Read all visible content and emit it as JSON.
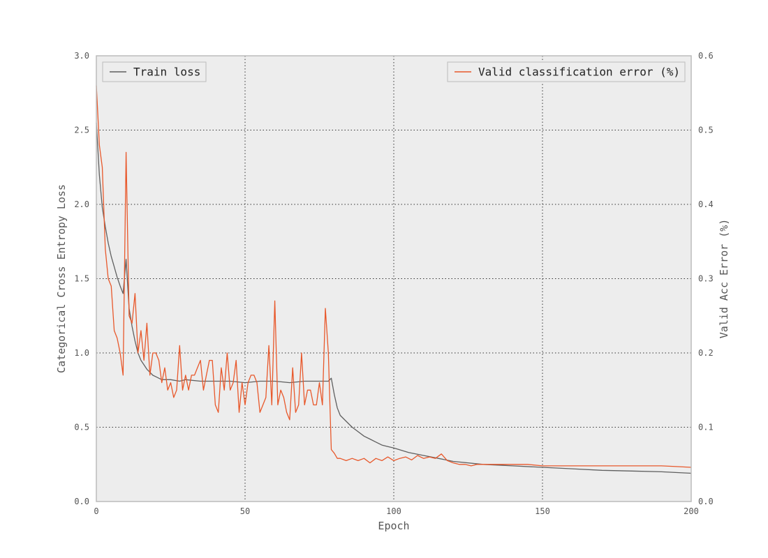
{
  "colors": {
    "plot_background": "#EDEDED",
    "train_loss": "#5F5F5F",
    "valid_error": "#E8582B",
    "grid": "#333333",
    "spine": "#BBBBBB"
  },
  "chart_data": {
    "type": "line",
    "grid": true,
    "x": {
      "label": "Epoch",
      "range": [
        0,
        200
      ],
      "ticks": [
        0,
        50,
        100,
        150,
        200
      ],
      "tick_labels": [
        "0",
        "50",
        "100",
        "150",
        "200"
      ]
    },
    "y_left": {
      "label": "Categorical Cross Entropy Loss",
      "range": [
        0,
        3.0
      ],
      "ticks": [
        0,
        0.5,
        1.0,
        1.5,
        2.0,
        2.5,
        3.0
      ],
      "tick_labels": [
        "0.0",
        "0.5",
        "1.0",
        "1.5",
        "2.0",
        "2.5",
        "3.0"
      ]
    },
    "y_right": {
      "label": "Valid Acc Error (%)",
      "range": [
        0,
        0.6
      ],
      "ticks": [
        0,
        0.1,
        0.2,
        0.3,
        0.4,
        0.5,
        0.6
      ],
      "tick_labels": [
        "0.0",
        "0.1",
        "0.2",
        "0.3",
        "0.4",
        "0.5",
        "0.6"
      ]
    },
    "legends": [
      {
        "placement": "top-left",
        "label": "Train loss",
        "series": "train_loss"
      },
      {
        "placement": "top-right",
        "label": "Valid classification error (%)",
        "series": "valid_error"
      }
    ],
    "series": [
      {
        "name": "Train loss",
        "axis": "left",
        "x": [
          0,
          1,
          2,
          3,
          4,
          5,
          6,
          7,
          8,
          9,
          10,
          11,
          12,
          13,
          14,
          15,
          16,
          17,
          18,
          19,
          20,
          22,
          25,
          28,
          30,
          35,
          40,
          45,
          50,
          55,
          60,
          65,
          70,
          75,
          78,
          79,
          80,
          81,
          82,
          84,
          86,
          88,
          90,
          92,
          94,
          96,
          98,
          100,
          105,
          110,
          115,
          120,
          130,
          140,
          150,
          160,
          170,
          180,
          190,
          200
        ],
        "values": [
          2.55,
          2.2,
          1.98,
          1.85,
          1.74,
          1.65,
          1.58,
          1.51,
          1.45,
          1.4,
          1.63,
          1.3,
          1.18,
          1.08,
          1.0,
          0.95,
          0.92,
          0.89,
          0.87,
          0.85,
          0.84,
          0.82,
          0.82,
          0.81,
          0.82,
          0.81,
          0.81,
          0.81,
          0.8,
          0.81,
          0.81,
          0.8,
          0.81,
          0.81,
          0.81,
          0.83,
          0.72,
          0.63,
          0.58,
          0.54,
          0.5,
          0.47,
          0.44,
          0.42,
          0.4,
          0.38,
          0.37,
          0.36,
          0.33,
          0.31,
          0.29,
          0.27,
          0.25,
          0.24,
          0.23,
          0.22,
          0.21,
          0.205,
          0.2,
          0.19
        ]
      },
      {
        "name": "Valid classification error (%)",
        "axis": "right",
        "x": [
          0,
          1,
          2,
          3,
          4,
          5,
          6,
          7,
          8,
          9,
          10,
          11,
          12,
          13,
          14,
          15,
          16,
          17,
          18,
          19,
          20,
          21,
          22,
          23,
          24,
          25,
          26,
          27,
          28,
          29,
          30,
          31,
          32,
          33,
          34,
          35,
          36,
          37,
          38,
          39,
          40,
          41,
          42,
          43,
          44,
          45,
          46,
          47,
          48,
          49,
          50,
          51,
          52,
          53,
          54,
          55,
          56,
          57,
          58,
          59,
          60,
          61,
          62,
          63,
          64,
          65,
          66,
          67,
          68,
          69,
          70,
          71,
          72,
          73,
          74,
          75,
          76,
          77,
          78,
          79,
          80,
          81,
          82,
          84,
          86,
          88,
          90,
          92,
          94,
          96,
          98,
          100,
          102,
          104,
          106,
          108,
          110,
          112,
          114,
          116,
          118,
          120,
          122,
          124,
          126,
          128,
          130,
          135,
          140,
          145,
          150,
          155,
          160,
          165,
          170,
          175,
          180,
          185,
          190,
          195,
          200
        ],
        "values": [
          0.56,
          0.48,
          0.45,
          0.34,
          0.3,
          0.29,
          0.23,
          0.22,
          0.2,
          0.17,
          0.47,
          0.25,
          0.24,
          0.28,
          0.2,
          0.23,
          0.19,
          0.24,
          0.17,
          0.2,
          0.2,
          0.19,
          0.16,
          0.18,
          0.15,
          0.16,
          0.14,
          0.15,
          0.21,
          0.15,
          0.17,
          0.15,
          0.17,
          0.17,
          0.18,
          0.19,
          0.15,
          0.17,
          0.19,
          0.19,
          0.13,
          0.12,
          0.18,
          0.15,
          0.2,
          0.15,
          0.16,
          0.19,
          0.12,
          0.16,
          0.13,
          0.16,
          0.17,
          0.17,
          0.16,
          0.12,
          0.13,
          0.14,
          0.21,
          0.13,
          0.27,
          0.13,
          0.15,
          0.14,
          0.12,
          0.11,
          0.18,
          0.12,
          0.13,
          0.2,
          0.13,
          0.15,
          0.15,
          0.13,
          0.13,
          0.16,
          0.13,
          0.26,
          0.2,
          0.07,
          0.065,
          0.058,
          0.058,
          0.055,
          0.058,
          0.055,
          0.058,
          0.052,
          0.058,
          0.055,
          0.06,
          0.055,
          0.058,
          0.06,
          0.056,
          0.062,
          0.058,
          0.06,
          0.058,
          0.064,
          0.055,
          0.052,
          0.05,
          0.05,
          0.048,
          0.05,
          0.05,
          0.05,
          0.05,
          0.05,
          0.048,
          0.048,
          0.048,
          0.048,
          0.048,
          0.048,
          0.048,
          0.048,
          0.048,
          0.047,
          0.046
        ]
      }
    ]
  }
}
